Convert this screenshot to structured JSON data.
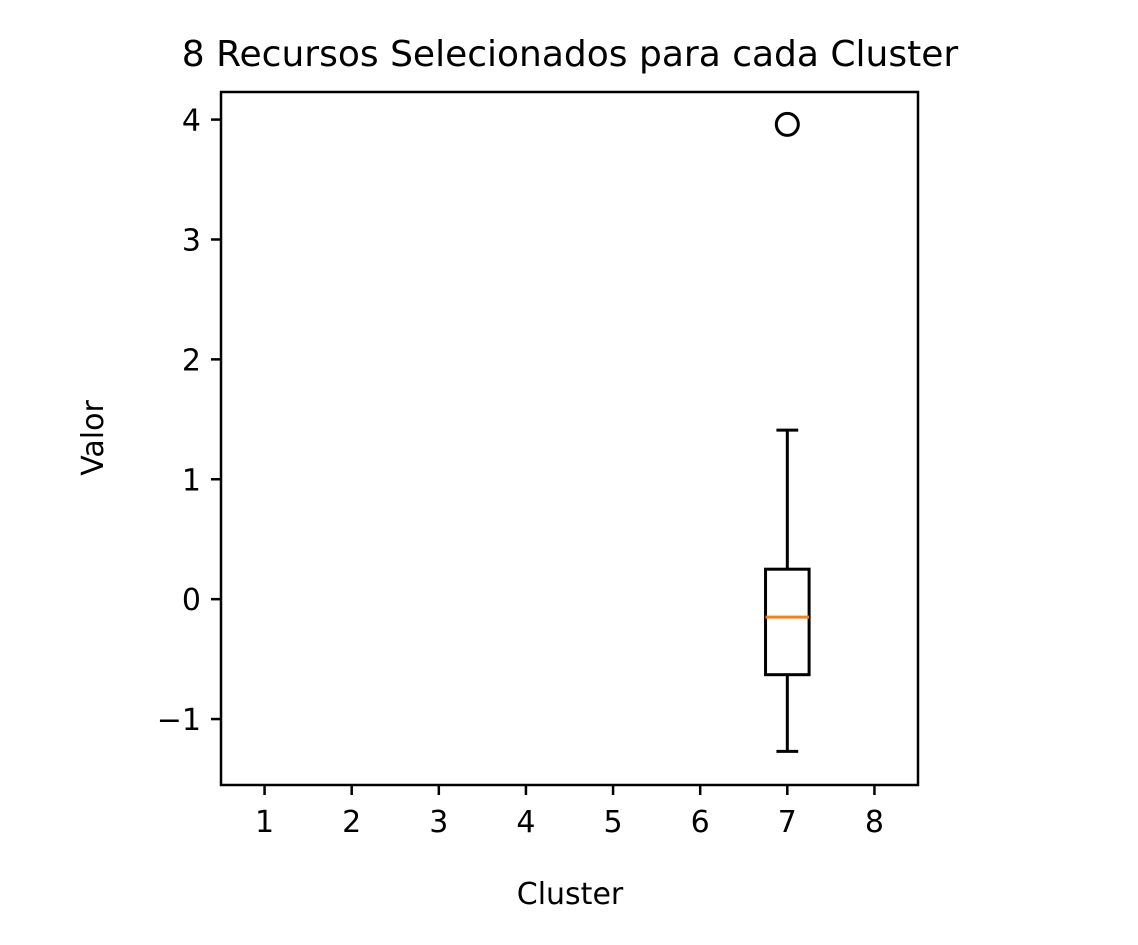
{
  "chart_data": {
    "type": "box",
    "title": "8 Recursos Selecionados para cada Cluster",
    "xlabel": "Cluster",
    "ylabel": "Valor",
    "categories": [
      "1",
      "2",
      "3",
      "4",
      "5",
      "6",
      "7",
      "8"
    ],
    "y_ticks": [
      -1,
      0,
      1,
      2,
      3,
      4
    ],
    "y_tick_labels": [
      "−1",
      "0",
      "1",
      "2",
      "3",
      "4"
    ],
    "ylim": [
      -1.55,
      4.23
    ],
    "xlim": [
      0.5,
      8.5
    ],
    "grid": false,
    "legend": "none",
    "boxes": [
      {
        "category": "7",
        "whisker_low": -1.27,
        "q1": -0.63,
        "median": -0.15,
        "q3": 0.25,
        "whisker_high": 1.41,
        "outliers": [
          3.96
        ]
      }
    ],
    "colors": {
      "box_edge": "#000000",
      "median": "#ff7f0e",
      "outlier_edge": "#000000"
    }
  }
}
